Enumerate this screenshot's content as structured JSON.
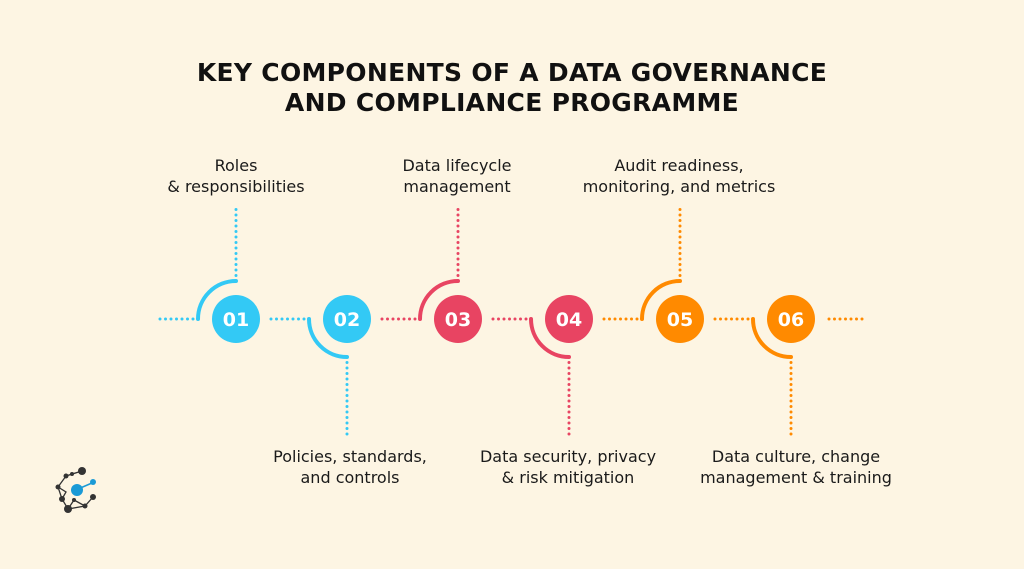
{
  "title_lines": [
    "KEY COMPONENTS OF A DATA GOVERNANCE",
    "AND COMPLIANCE PROGRAMME"
  ],
  "colors": {
    "background": "#fdf5e3",
    "blue": "#33c9f5",
    "red": "#e84462",
    "orange": "#ff8a00"
  },
  "steps": [
    {
      "number": "01",
      "label_lines": [
        "Roles",
        "& responsibilities"
      ],
      "position": "top",
      "color": "#33c9f5"
    },
    {
      "number": "02",
      "label_lines": [
        "Policies, standards,",
        "and controls"
      ],
      "position": "bottom",
      "color": "#33c9f5"
    },
    {
      "number": "03",
      "label_lines": [
        "Data lifecycle",
        "management"
      ],
      "position": "top",
      "color": "#e84462"
    },
    {
      "number": "04",
      "label_lines": [
        "Data security, privacy",
        "& risk mitigation"
      ],
      "position": "bottom",
      "color": "#e84462"
    },
    {
      "number": "05",
      "label_lines": [
        "Audit readiness,",
        "monitoring, and metrics"
      ],
      "position": "top",
      "color": "#ff8a00"
    },
    {
      "number": "06",
      "label_lines": [
        "Data culture, change",
        "management & training"
      ],
      "position": "bottom",
      "color": "#ff8a00"
    }
  ],
  "logo": {
    "icon": "network-nodes-logo"
  }
}
